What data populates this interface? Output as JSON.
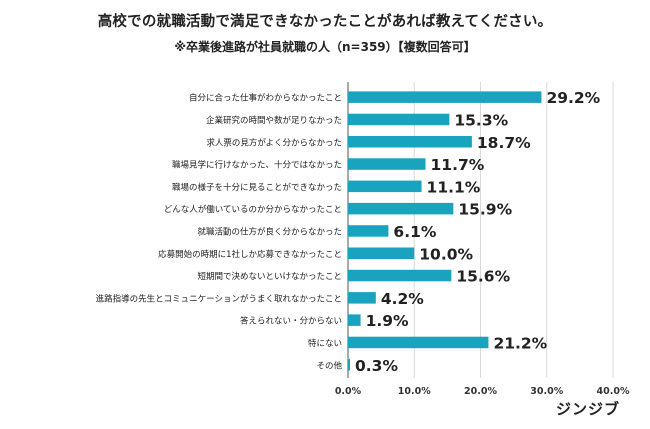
{
  "title": "高校での就職活動で満足できなかったことがあれば教えてください。",
  "subtitle": "※卒業後進路が社員就職の人（n=359）【複数回答可】",
  "brand": "ジンジブ",
  "chart_data": {
    "type": "bar",
    "orientation": "horizontal",
    "categories": [
      "自分に合った仕事がわからなかったこと",
      "企業研究の時間や数が足りなかった",
      "求人票の見方がよく分からなかった",
      "職場見学に行けなかった、十分ではなかった",
      "職場の様子を十分に見ることができなかった",
      "どんな人が働いているのか分からなかったこと",
      "就職活動の仕方が良く分からなかった",
      "応募開始の時期に1社しか応募できなかったこと",
      "短期間で決めないといけなかったこと",
      "進路指導の先生とコミュニケーションがうまく取れなかったこと",
      "答えられない・分からない",
      "特にない",
      "その他"
    ],
    "values": [
      29.2,
      15.3,
      18.7,
      11.7,
      11.1,
      15.9,
      6.1,
      10.0,
      15.6,
      4.2,
      1.9,
      21.2,
      0.3
    ],
    "value_labels": [
      "29.2%",
      "15.3%",
      "18.7%",
      "11.7%",
      "11.1%",
      "15.9%",
      "6.1%",
      "10.0%",
      "15.6%",
      "4.2%",
      "1.9%",
      "21.2%",
      "0.3%"
    ],
    "xlim": [
      0,
      40
    ],
    "xticks": [
      "0.0%",
      "10.0%",
      "20.0%",
      "30.0%",
      "40.0%"
    ],
    "grid": true,
    "colors": {
      "bar": "#1AA3BE",
      "grid": "#D9D9D9",
      "axis": "#555555"
    }
  }
}
